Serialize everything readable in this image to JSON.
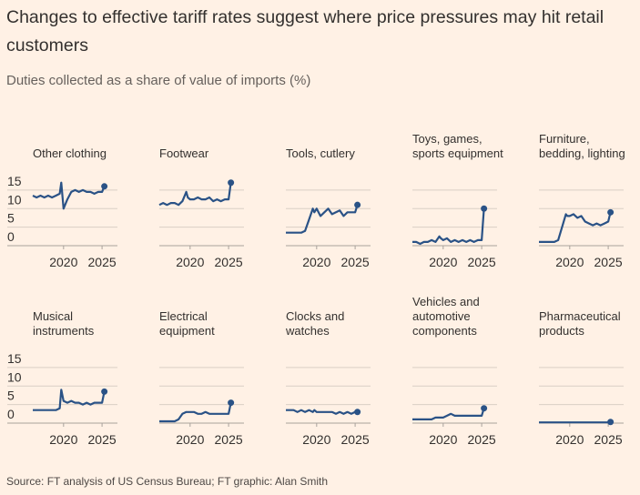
{
  "title": "Changes to effective tariff rates suggest where price pressures may hit retail customers",
  "subtitle": "Duties collected as a share of value of imports (%)",
  "source": "Source: FT analysis of US Census Bureau; FT graphic: Alan Smith",
  "chart_data": [
    {
      "type": "line",
      "title": [
        "Other clothing"
      ],
      "x": [
        2016,
        2016.5,
        2017,
        2017.5,
        2018,
        2018.5,
        2019,
        2019.5,
        2019.7,
        2020,
        2020.5,
        2021,
        2021.5,
        2022,
        2022.5,
        2023,
        2023.5,
        2024,
        2024.5,
        2025,
        2025.3
      ],
      "series": [
        {
          "color": "#2a5286",
          "values": [
            13.5,
            13,
            13.5,
            13,
            13.5,
            13,
            13.5,
            14,
            17,
            10,
            12.5,
            14.5,
            15,
            14.5,
            15,
            14.5,
            14.5,
            14,
            14.5,
            14.5,
            16
          ]
        }
      ],
      "xlim": [
        2016,
        2027
      ],
      "xticks": [
        2020,
        2025
      ],
      "ylim": [
        0,
        20
      ],
      "yticks": [
        0,
        5,
        10,
        15
      ],
      "grid": true
    },
    {
      "type": "line",
      "title": [
        "Footwear"
      ],
      "x": [
        2016,
        2016.5,
        2017,
        2017.5,
        2018,
        2018.5,
        2019,
        2019.5,
        2019.7,
        2020,
        2020.5,
        2021,
        2021.5,
        2022,
        2022.5,
        2023,
        2023.5,
        2024,
        2024.5,
        2025,
        2025.3
      ],
      "series": [
        {
          "color": "#2a5286",
          "values": [
            11,
            11.5,
            11,
            11.5,
            11.5,
            11,
            12,
            14.5,
            13,
            12.5,
            12.5,
            13,
            12.5,
            12.5,
            13,
            12,
            12.5,
            12,
            12.5,
            12.5,
            17
          ]
        }
      ],
      "xlim": [
        2016,
        2027
      ],
      "xticks": [
        2020,
        2025
      ],
      "ylim": [
        0,
        20
      ],
      "yticks": [
        0,
        5,
        10,
        15
      ],
      "grid": true
    },
    {
      "type": "line",
      "title": [
        "Tools, cutlery"
      ],
      "x": [
        2016,
        2016.5,
        2017,
        2017.5,
        2018,
        2018.5,
        2019,
        2019.5,
        2019.7,
        2020,
        2020.5,
        2021,
        2021.5,
        2022,
        2022.5,
        2023,
        2023.5,
        2024,
        2024.5,
        2025,
        2025.3
      ],
      "series": [
        {
          "color": "#2a5286",
          "values": [
            3.5,
            3.5,
            3.5,
            3.5,
            3.5,
            4,
            7,
            10,
            9,
            10,
            8,
            9,
            10,
            8.5,
            9,
            9.5,
            8,
            9,
            9,
            9,
            11
          ]
        }
      ],
      "xlim": [
        2016,
        2027
      ],
      "xticks": [
        2020,
        2025
      ],
      "ylim": [
        0,
        20
      ],
      "yticks": [
        0,
        5,
        10,
        15
      ],
      "grid": true
    },
    {
      "type": "line",
      "title": [
        "Toys, games,",
        "sports equipment"
      ],
      "x": [
        2016,
        2016.5,
        2017,
        2017.5,
        2018,
        2018.5,
        2019,
        2019.5,
        2019.7,
        2020,
        2020.5,
        2021,
        2021.5,
        2022,
        2022.5,
        2023,
        2023.5,
        2024,
        2024.5,
        2025,
        2025.3
      ],
      "series": [
        {
          "color": "#2a5286",
          "values": [
            1,
            1,
            0.5,
            1,
            1,
            1.5,
            1,
            2.5,
            2,
            1.5,
            2,
            1,
            1.5,
            1,
            1.5,
            1,
            1.5,
            1,
            1.5,
            1.5,
            10
          ]
        }
      ],
      "xlim": [
        2016,
        2027
      ],
      "xticks": [
        2020,
        2025
      ],
      "ylim": [
        0,
        20
      ],
      "yticks": [
        0,
        5,
        10,
        15
      ],
      "grid": true
    },
    {
      "type": "line",
      "title": [
        "Furniture,",
        "bedding, lighting"
      ],
      "x": [
        2016,
        2016.5,
        2017,
        2017.5,
        2018,
        2018.5,
        2019,
        2019.5,
        2019.7,
        2020,
        2020.5,
        2021,
        2021.5,
        2022,
        2022.5,
        2023,
        2023.5,
        2024,
        2024.5,
        2025,
        2025.3
      ],
      "series": [
        {
          "color": "#2a5286",
          "values": [
            1,
            1,
            1,
            1,
            1,
            1.5,
            5,
            8.5,
            8,
            8,
            8.5,
            7.5,
            8,
            6.5,
            6,
            5.5,
            6,
            5.5,
            6,
            6.5,
            9
          ]
        }
      ],
      "xlim": [
        2016,
        2027
      ],
      "xticks": [
        2020,
        2025
      ],
      "ylim": [
        0,
        20
      ],
      "yticks": [
        0,
        5,
        10,
        15
      ],
      "grid": true
    },
    {
      "type": "line",
      "title": [
        "Musical",
        "instruments"
      ],
      "x": [
        2016,
        2016.5,
        2017,
        2017.5,
        2018,
        2018.5,
        2019,
        2019.5,
        2019.7,
        2020,
        2020.5,
        2021,
        2021.5,
        2022,
        2022.5,
        2023,
        2023.5,
        2024,
        2024.5,
        2025,
        2025.3
      ],
      "series": [
        {
          "color": "#2a5286",
          "values": [
            3.5,
            3.5,
            3.5,
            3.5,
            3.5,
            3.5,
            3.5,
            4,
            9,
            6,
            5.5,
            6,
            5.5,
            5.5,
            5,
            5.5,
            5,
            5.5,
            5.5,
            5.5,
            8.5
          ]
        }
      ],
      "xlim": [
        2016,
        2027
      ],
      "xticks": [
        2020,
        2025
      ],
      "ylim": [
        0,
        20
      ],
      "yticks": [
        0,
        5,
        10,
        15
      ],
      "grid": true
    },
    {
      "type": "line",
      "title": [
        "Electrical",
        "equipment"
      ],
      "x": [
        2016,
        2016.5,
        2017,
        2017.5,
        2018,
        2018.5,
        2019,
        2019.5,
        2019.7,
        2020,
        2020.5,
        2021,
        2021.5,
        2022,
        2022.5,
        2023,
        2023.5,
        2024,
        2024.5,
        2025,
        2025.3
      ],
      "series": [
        {
          "color": "#2a5286",
          "values": [
            0.5,
            0.5,
            0.5,
            0.5,
            0.5,
            1,
            2.5,
            3,
            3,
            3,
            3,
            2.5,
            2.5,
            3,
            2.5,
            2.5,
            2.5,
            2.5,
            2.5,
            2.5,
            5.5
          ]
        }
      ],
      "xlim": [
        2016,
        2027
      ],
      "xticks": [
        2020,
        2025
      ],
      "ylim": [
        0,
        20
      ],
      "yticks": [
        0,
        5,
        10,
        15
      ],
      "grid": true
    },
    {
      "type": "line",
      "title": [
        "Clocks and",
        "watches"
      ],
      "x": [
        2016,
        2016.5,
        2017,
        2017.5,
        2018,
        2018.5,
        2019,
        2019.5,
        2019.7,
        2020,
        2020.5,
        2021,
        2021.5,
        2022,
        2022.5,
        2023,
        2023.5,
        2024,
        2024.5,
        2025,
        2025.3
      ],
      "series": [
        {
          "color": "#2a5286",
          "values": [
            3.5,
            3.5,
            3.5,
            3,
            3.5,
            3,
            3.5,
            3,
            3.5,
            3,
            3,
            3,
            3,
            3,
            2.5,
            3,
            2.5,
            3,
            2.5,
            3,
            3
          ]
        }
      ],
      "xlim": [
        2016,
        2027
      ],
      "xticks": [
        2020,
        2025
      ],
      "ylim": [
        0,
        20
      ],
      "yticks": [
        0,
        5,
        10,
        15
      ],
      "grid": true
    },
    {
      "type": "line",
      "title": [
        "Vehicles and",
        "automotive",
        "components"
      ],
      "x": [
        2016,
        2016.5,
        2017,
        2017.5,
        2018,
        2018.5,
        2019,
        2019.5,
        2019.7,
        2020,
        2020.5,
        2021,
        2021.5,
        2022,
        2022.5,
        2023,
        2023.5,
        2024,
        2024.5,
        2025,
        2025.3
      ],
      "series": [
        {
          "color": "#2a5286",
          "values": [
            1,
            1,
            1,
            1,
            1,
            1,
            1.5,
            1.5,
            1.5,
            1.5,
            2,
            2.5,
            2,
            2,
            2,
            2,
            2,
            2,
            2,
            2,
            4
          ]
        }
      ],
      "xlim": [
        2016,
        2027
      ],
      "xticks": [
        2020,
        2025
      ],
      "ylim": [
        0,
        20
      ],
      "yticks": [
        0,
        5,
        10,
        15
      ],
      "grid": true
    },
    {
      "type": "line",
      "title": [
        "Pharmaceutical",
        "products"
      ],
      "x": [
        2016,
        2016.5,
        2017,
        2017.5,
        2018,
        2018.5,
        2019,
        2019.5,
        2019.7,
        2020,
        2020.5,
        2021,
        2021.5,
        2022,
        2022.5,
        2023,
        2023.5,
        2024,
        2024.5,
        2025,
        2025.3
      ],
      "series": [
        {
          "color": "#2a5286",
          "values": [
            0.2,
            0.2,
            0.2,
            0.2,
            0.2,
            0.2,
            0.2,
            0.2,
            0.2,
            0.2,
            0.2,
            0.2,
            0.2,
            0.2,
            0.2,
            0.2,
            0.2,
            0.2,
            0.2,
            0.2,
            0.3
          ]
        }
      ],
      "xlim": [
        2016,
        2027
      ],
      "xticks": [
        2020,
        2025
      ],
      "ylim": [
        0,
        20
      ],
      "yticks": [
        0,
        5,
        10,
        15
      ],
      "grid": true
    }
  ]
}
